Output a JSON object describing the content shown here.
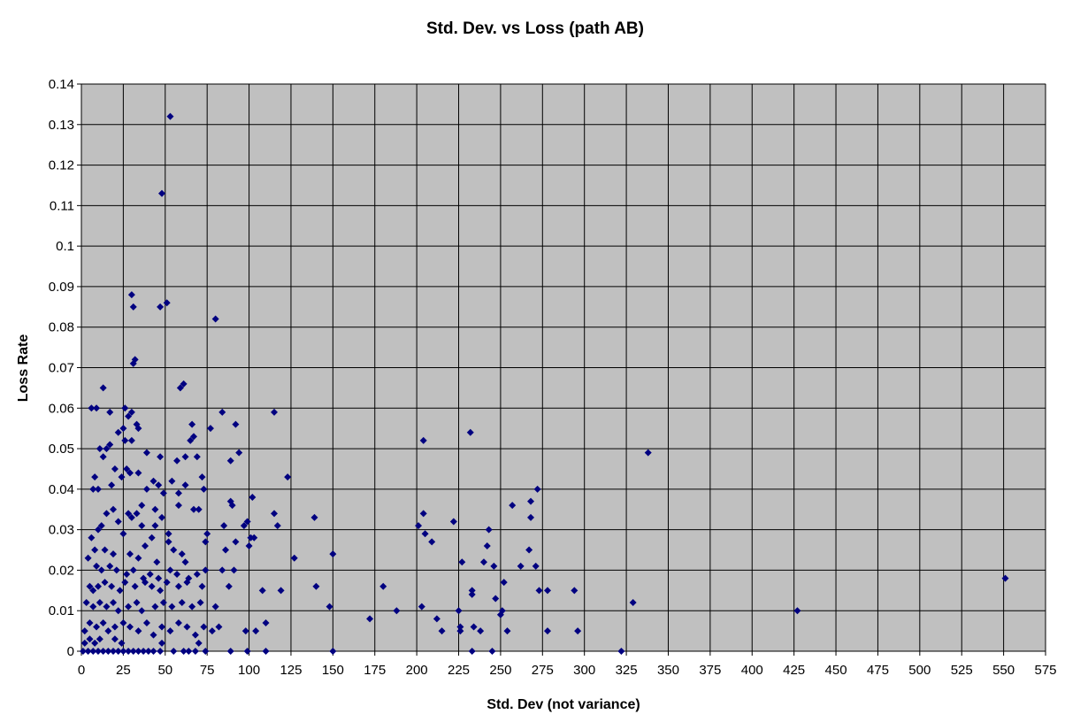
{
  "chart_data": {
    "type": "scatter",
    "title": "Std. Dev. vs Loss (path AB)",
    "xlabel": "Std. Dev (not variance)",
    "ylabel": "Loss Rate",
    "xlim": [
      0,
      575
    ],
    "ylim": [
      0,
      0.14
    ],
    "xticks": [
      0,
      25,
      50,
      75,
      100,
      125,
      150,
      175,
      200,
      225,
      250,
      275,
      300,
      325,
      350,
      375,
      400,
      425,
      450,
      475,
      500,
      525,
      550,
      575
    ],
    "yticks": [
      0,
      0.01,
      0.02,
      0.03,
      0.04,
      0.05,
      0.06,
      0.07,
      0.08,
      0.09,
      0.1,
      0.11,
      0.12,
      0.13,
      0.14
    ],
    "grid": true,
    "legend": "none",
    "colors": {
      "plot_background": "#c0c0c0",
      "marker": "#000080",
      "grid": "#000000"
    },
    "points": [
      [
        53,
        0.132
      ],
      [
        48,
        0.113
      ],
      [
        30,
        0.088
      ],
      [
        31,
        0.085
      ],
      [
        51,
        0.086
      ],
      [
        47,
        0.085
      ],
      [
        80,
        0.082
      ],
      [
        32,
        0.072
      ],
      [
        31,
        0.071
      ],
      [
        61,
        0.066
      ],
      [
        59,
        0.065
      ],
      [
        13,
        0.065
      ],
      [
        6,
        0.06
      ],
      [
        9,
        0.06
      ],
      [
        26,
        0.06
      ],
      [
        30,
        0.059
      ],
      [
        17,
        0.059
      ],
      [
        28,
        0.058
      ],
      [
        84,
        0.059
      ],
      [
        115,
        0.059
      ],
      [
        33,
        0.056
      ],
      [
        34,
        0.055
      ],
      [
        66,
        0.056
      ],
      [
        92,
        0.056
      ],
      [
        25,
        0.055
      ],
      [
        22,
        0.054
      ],
      [
        77,
        0.055
      ],
      [
        67,
        0.053
      ],
      [
        65,
        0.052
      ],
      [
        30,
        0.052
      ],
      [
        26,
        0.052
      ],
      [
        17,
        0.051
      ],
      [
        15,
        0.05
      ],
      [
        11,
        0.05
      ],
      [
        39,
        0.049
      ],
      [
        47,
        0.048
      ],
      [
        57,
        0.047
      ],
      [
        62,
        0.048
      ],
      [
        69,
        0.048
      ],
      [
        89,
        0.047
      ],
      [
        94,
        0.049
      ],
      [
        13,
        0.048
      ],
      [
        20,
        0.045
      ],
      [
        27,
        0.045
      ],
      [
        29,
        0.044
      ],
      [
        34,
        0.044
      ],
      [
        54,
        0.042
      ],
      [
        43,
        0.042
      ],
      [
        46,
        0.041
      ],
      [
        8,
        0.043
      ],
      [
        24,
        0.043
      ],
      [
        18,
        0.041
      ],
      [
        10,
        0.04
      ],
      [
        7,
        0.04
      ],
      [
        49,
        0.039
      ],
      [
        73,
        0.04
      ],
      [
        72,
        0.043
      ],
      [
        62,
        0.041
      ],
      [
        58,
        0.039
      ],
      [
        123,
        0.043
      ],
      [
        102,
        0.038
      ],
      [
        89,
        0.037
      ],
      [
        90,
        0.036
      ],
      [
        36,
        0.036
      ],
      [
        39,
        0.04
      ],
      [
        15,
        0.034
      ],
      [
        19,
        0.035
      ],
      [
        28,
        0.034
      ],
      [
        33,
        0.034
      ],
      [
        44,
        0.035
      ],
      [
        48,
        0.033
      ],
      [
        58,
        0.036
      ],
      [
        67,
        0.035
      ],
      [
        70,
        0.035
      ],
      [
        99,
        0.032
      ],
      [
        115,
        0.034
      ],
      [
        117,
        0.031
      ],
      [
        139,
        0.033
      ],
      [
        6,
        0.028
      ],
      [
        10,
        0.03
      ],
      [
        12,
        0.031
      ],
      [
        22,
        0.032
      ],
      [
        25,
        0.029
      ],
      [
        30,
        0.033
      ],
      [
        36,
        0.031
      ],
      [
        44,
        0.031
      ],
      [
        52,
        0.029
      ],
      [
        75,
        0.029
      ],
      [
        85,
        0.031
      ],
      [
        97,
        0.031
      ],
      [
        101,
        0.028
      ],
      [
        103,
        0.028
      ],
      [
        92,
        0.027
      ],
      [
        74,
        0.027
      ],
      [
        42,
        0.028
      ],
      [
        52,
        0.027
      ],
      [
        38,
        0.026
      ],
      [
        14,
        0.025
      ],
      [
        8,
        0.025
      ],
      [
        4,
        0.023
      ],
      [
        19,
        0.024
      ],
      [
        29,
        0.024
      ],
      [
        34,
        0.023
      ],
      [
        45,
        0.022
      ],
      [
        55,
        0.025
      ],
      [
        60,
        0.024
      ],
      [
        62,
        0.022
      ],
      [
        86,
        0.025
      ],
      [
        100,
        0.026
      ],
      [
        127,
        0.023
      ],
      [
        150,
        0.024
      ],
      [
        9,
        0.021
      ],
      [
        12,
        0.02
      ],
      [
        17,
        0.021
      ],
      [
        21,
        0.02
      ],
      [
        27,
        0.019
      ],
      [
        31,
        0.02
      ],
      [
        37,
        0.018
      ],
      [
        41,
        0.019
      ],
      [
        46,
        0.018
      ],
      [
        53,
        0.02
      ],
      [
        57,
        0.019
      ],
      [
        64,
        0.018
      ],
      [
        69,
        0.019
      ],
      [
        74,
        0.02
      ],
      [
        84,
        0.02
      ],
      [
        91,
        0.02
      ],
      [
        5,
        0.016
      ],
      [
        7,
        0.015
      ],
      [
        10,
        0.016
      ],
      [
        14,
        0.017
      ],
      [
        18,
        0.016
      ],
      [
        23,
        0.015
      ],
      [
        26,
        0.017
      ],
      [
        32,
        0.016
      ],
      [
        38,
        0.017
      ],
      [
        42,
        0.016
      ],
      [
        47,
        0.015
      ],
      [
        51,
        0.017
      ],
      [
        58,
        0.016
      ],
      [
        63,
        0.017
      ],
      [
        72,
        0.016
      ],
      [
        88,
        0.016
      ],
      [
        108,
        0.015
      ],
      [
        119,
        0.015
      ],
      [
        140,
        0.016
      ],
      [
        180,
        0.016
      ],
      [
        3,
        0.012
      ],
      [
        7,
        0.011
      ],
      [
        11,
        0.012
      ],
      [
        15,
        0.011
      ],
      [
        19,
        0.012
      ],
      [
        22,
        0.01
      ],
      [
        28,
        0.011
      ],
      [
        33,
        0.012
      ],
      [
        36,
        0.01
      ],
      [
        44,
        0.011
      ],
      [
        49,
        0.012
      ],
      [
        54,
        0.011
      ],
      [
        60,
        0.012
      ],
      [
        66,
        0.011
      ],
      [
        71,
        0.012
      ],
      [
        80,
        0.011
      ],
      [
        2,
        0.005
      ],
      [
        5,
        0.007
      ],
      [
        9,
        0.006
      ],
      [
        13,
        0.007
      ],
      [
        16,
        0.005
      ],
      [
        20,
        0.006
      ],
      [
        25,
        0.007
      ],
      [
        29,
        0.006
      ],
      [
        34,
        0.005
      ],
      [
        39,
        0.007
      ],
      [
        43,
        0.004
      ],
      [
        48,
        0.006
      ],
      [
        53,
        0.005
      ],
      [
        58,
        0.007
      ],
      [
        63,
        0.006
      ],
      [
        68,
        0.004
      ],
      [
        73,
        0.006
      ],
      [
        78,
        0.005
      ],
      [
        82,
        0.006
      ],
      [
        98,
        0.005
      ],
      [
        104,
        0.005
      ],
      [
        110,
        0.007
      ],
      [
        148,
        0.011
      ],
      [
        2,
        0.002
      ],
      [
        5,
        0.003
      ],
      [
        8,
        0.002
      ],
      [
        11,
        0.003
      ],
      [
        20,
        0.003
      ],
      [
        24,
        0.002
      ],
      [
        48,
        0.002
      ],
      [
        70,
        0.002
      ],
      [
        1,
        0
      ],
      [
        4,
        0
      ],
      [
        7,
        0
      ],
      [
        10,
        0
      ],
      [
        13,
        0
      ],
      [
        16,
        0
      ],
      [
        19,
        0
      ],
      [
        22,
        0
      ],
      [
        25,
        0
      ],
      [
        28,
        0
      ],
      [
        31,
        0
      ],
      [
        34,
        0
      ],
      [
        37,
        0
      ],
      [
        40,
        0
      ],
      [
        43,
        0
      ],
      [
        47,
        0
      ],
      [
        55,
        0
      ],
      [
        61,
        0
      ],
      [
        64,
        0
      ],
      [
        68,
        0
      ],
      [
        74,
        0
      ],
      [
        89,
        0
      ],
      [
        99,
        0
      ],
      [
        110,
        0
      ],
      [
        150,
        0
      ],
      [
        204,
        0.052
      ],
      [
        232,
        0.054
      ],
      [
        201,
        0.031
      ],
      [
        204,
        0.034
      ],
      [
        205,
        0.029
      ],
      [
        209,
        0.027
      ],
      [
        222,
        0.032
      ],
      [
        227,
        0.022
      ],
      [
        233,
        0.015
      ],
      [
        233,
        0.014
      ],
      [
        203,
        0.011
      ],
      [
        212,
        0.008
      ],
      [
        215,
        0.005
      ],
      [
        225,
        0.01
      ],
      [
        226,
        0.006
      ],
      [
        226,
        0.005
      ],
      [
        234,
        0.006
      ],
      [
        238,
        0.005
      ],
      [
        233,
        0
      ],
      [
        245,
        0
      ],
      [
        240,
        0.022
      ],
      [
        243,
        0.03
      ],
      [
        242,
        0.026
      ],
      [
        246,
        0.021
      ],
      [
        247,
        0.013
      ],
      [
        250,
        0.009
      ],
      [
        251,
        0.01
      ],
      [
        252,
        0.017
      ],
      [
        254,
        0.005
      ],
      [
        257,
        0.036
      ],
      [
        262,
        0.021
      ],
      [
        267,
        0.025
      ],
      [
        268,
        0.037
      ],
      [
        268,
        0.033
      ],
      [
        271,
        0.021
      ],
      [
        272,
        0.04
      ],
      [
        273,
        0.015
      ],
      [
        278,
        0.015
      ],
      [
        278,
        0.005
      ],
      [
        294,
        0.015
      ],
      [
        296,
        0.005
      ],
      [
        172,
        0.008
      ],
      [
        188,
        0.01
      ],
      [
        322,
        0
      ],
      [
        329,
        0.012
      ],
      [
        338,
        0.049
      ],
      [
        427,
        0.01
      ],
      [
        551,
        0.018
      ]
    ]
  }
}
